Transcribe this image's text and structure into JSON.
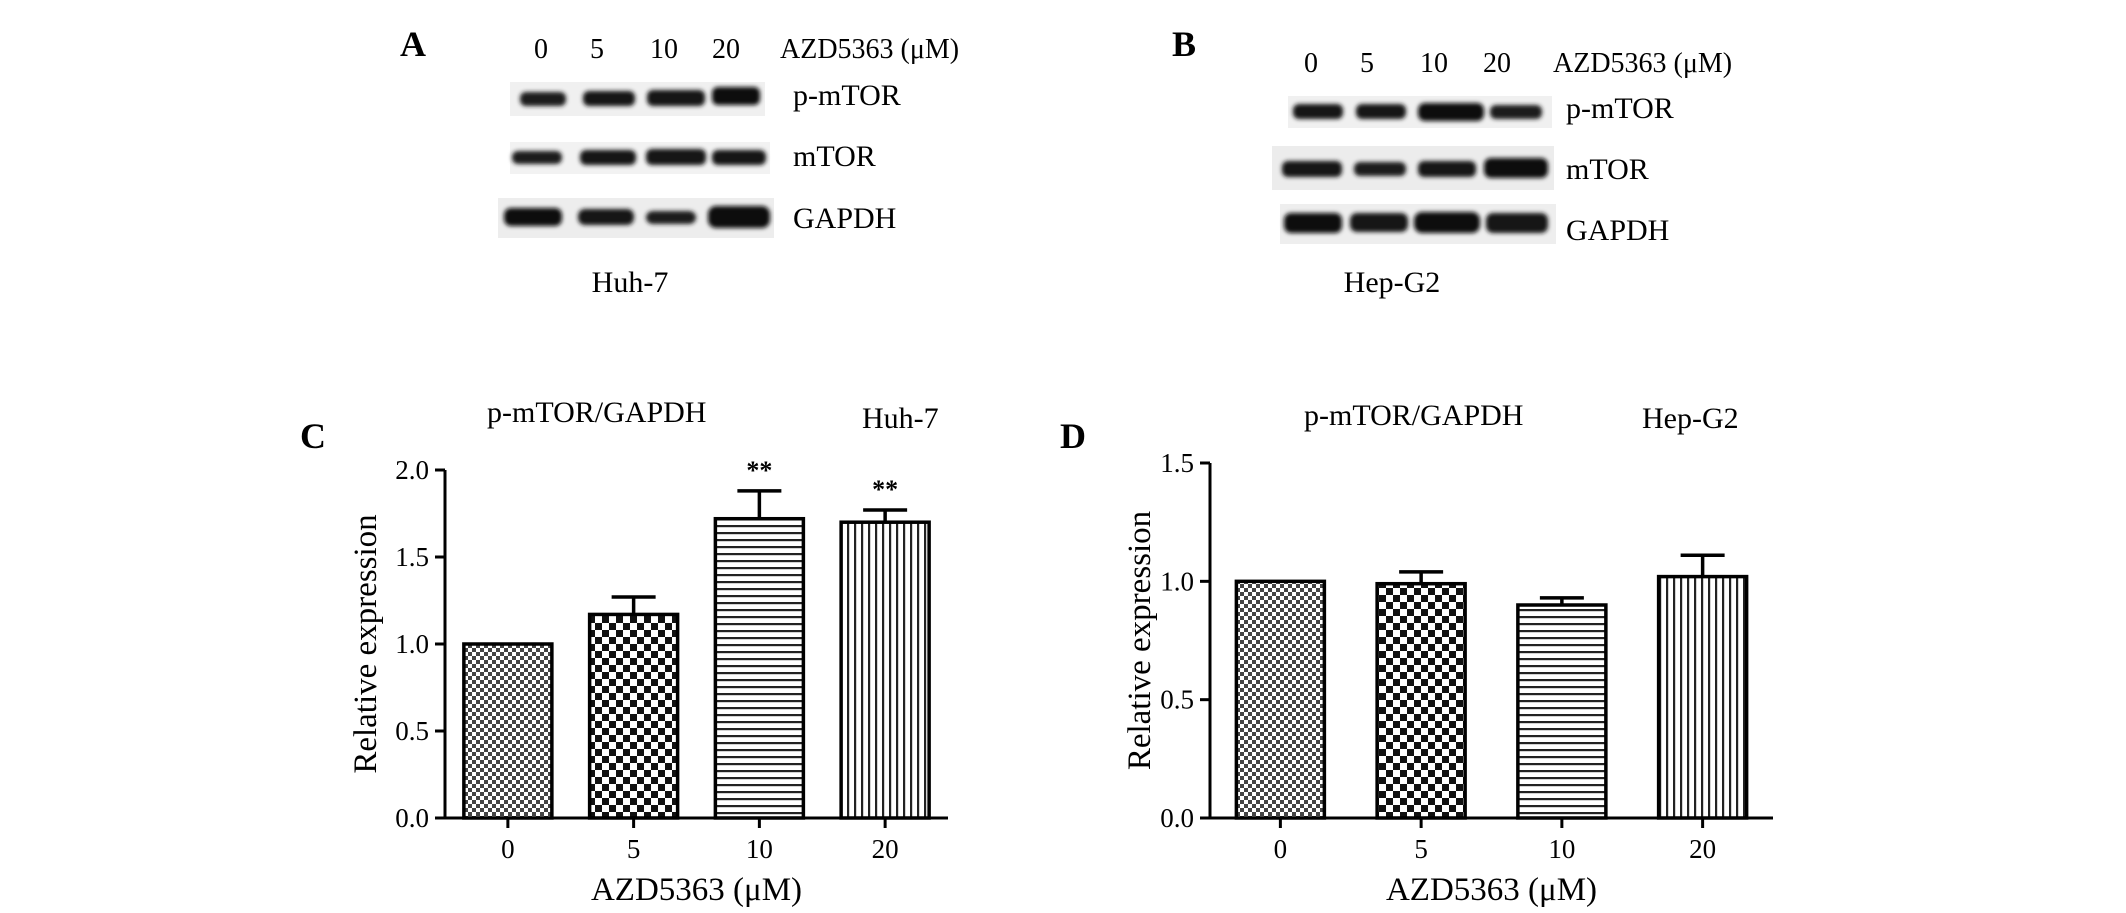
{
  "blots": [
    {
      "panel": "A",
      "lanes": [
        "0",
        "5",
        "10",
        "20"
      ],
      "treatment_label": "AZD5363 (μM)",
      "bands": [
        "p-mTOR",
        "mTOR",
        "GAPDH"
      ],
      "cell_line": "Huh-7"
    },
    {
      "panel": "B",
      "lanes": [
        "0",
        "5",
        "10",
        "20"
      ],
      "treatment_label": "AZD5363 (μM)",
      "bands": [
        "p-mTOR",
        "mTOR",
        "GAPDH"
      ],
      "cell_line": "Hep-G2"
    }
  ],
  "chart_data": [
    {
      "panel": "C",
      "type": "bar",
      "title": "p-mTOR/GAPDH",
      "subtitle": "Huh-7",
      "categories": [
        "0",
        "5",
        "10",
        "20"
      ],
      "values": [
        1.0,
        1.17,
        1.72,
        1.7
      ],
      "errors": [
        0.0,
        0.1,
        0.16,
        0.07
      ],
      "significance": [
        "",
        "",
        "**",
        "**"
      ],
      "patterns": [
        "fine-check",
        "coarse-check",
        "horizontal-lines",
        "vertical-lines"
      ],
      "xlabel": "AZD5363 (μM)",
      "ylabel": "Relative expression",
      "ylim": [
        0,
        2.0
      ],
      "yticks": [
        "0.0",
        "0.5",
        "1.0",
        "1.5",
        "2.0"
      ],
      "grid": false
    },
    {
      "panel": "D",
      "type": "bar",
      "title": "p-mTOR/GAPDH",
      "subtitle": "Hep-G2",
      "categories": [
        "0",
        "5",
        "10",
        "20"
      ],
      "values": [
        1.0,
        0.99,
        0.9,
        1.02
      ],
      "errors": [
        0.0,
        0.05,
        0.03,
        0.09
      ],
      "significance": [
        "",
        "",
        "",
        ""
      ],
      "patterns": [
        "fine-check",
        "coarse-check",
        "horizontal-lines",
        "vertical-lines"
      ],
      "xlabel": "AZD5363 (μM)",
      "ylabel": "Relative expression",
      "ylim": [
        0,
        1.5
      ],
      "yticks": [
        "0.0",
        "0.5",
        "1.0",
        "1.5"
      ],
      "grid": false
    }
  ]
}
